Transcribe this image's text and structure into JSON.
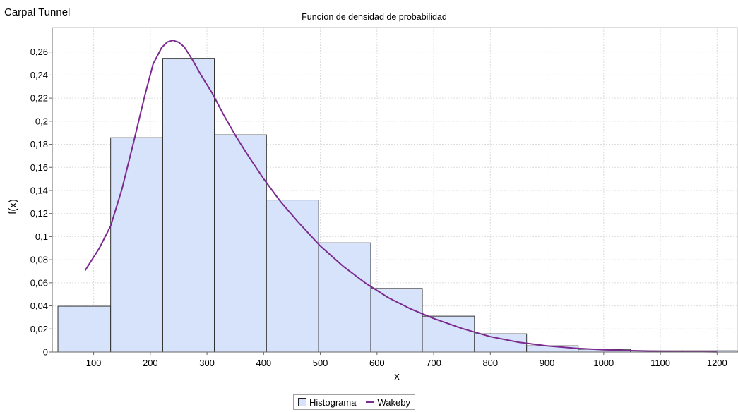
{
  "page_title": "Carpal Tunnel",
  "chart_data": {
    "type": "bar",
    "title": "Funcíon de densidad de probabilidad",
    "xlabel": "x",
    "ylabel": "f(x)",
    "xlim": [
      27,
      1237
    ],
    "ylim": [
      0,
      0.2812
    ],
    "grid": true,
    "legend_position": "bottom-center",
    "xticks": [
      100,
      200,
      300,
      400,
      500,
      600,
      700,
      800,
      900,
      1000,
      1100,
      1200
    ],
    "xtick_labels": [
      "100",
      "200",
      "300",
      "400",
      "500",
      "600",
      "700",
      "800",
      "900",
      "1000",
      "1100",
      "1200"
    ],
    "yticks": [
      0,
      0.02,
      0.04,
      0.06,
      0.08,
      0.1,
      0.12,
      0.14,
      0.16,
      0.18,
      0.2,
      0.22,
      0.24,
      0.26
    ],
    "ytick_labels": [
      "0",
      "0,02",
      "0,04",
      "0,06",
      "0,08",
      "0,1",
      "0,12",
      "0,14",
      "0,16",
      "0,18",
      "0,2",
      "0,22",
      "0,24",
      "0,26"
    ],
    "histogram": {
      "name": "Histograma",
      "color": "#d6e3fa",
      "edge_color": "#333333",
      "bins": [
        {
          "x0": 37,
          "x1": 130,
          "y": 0.0397
        },
        {
          "x0": 130,
          "x1": 222,
          "y": 0.1857
        },
        {
          "x0": 222,
          "x1": 313,
          "y": 0.2545
        },
        {
          "x0": 313,
          "x1": 405,
          "y": 0.1882
        },
        {
          "x0": 405,
          "x1": 497,
          "y": 0.1317
        },
        {
          "x0": 497,
          "x1": 589,
          "y": 0.0946
        },
        {
          "x0": 589,
          "x1": 680,
          "y": 0.0551
        },
        {
          "x0": 680,
          "x1": 772,
          "y": 0.0311
        },
        {
          "x0": 772,
          "x1": 864,
          "y": 0.0158
        },
        {
          "x0": 864,
          "x1": 955,
          "y": 0.0054
        },
        {
          "x0": 955,
          "x1": 1047,
          "y": 0.0024
        },
        {
          "x0": 1047,
          "x1": 1139,
          "y": 0.0011
        },
        {
          "x0": 1139,
          "x1": 1237,
          "y": 0.0011
        }
      ]
    },
    "series": [
      {
        "name": "Wakeby",
        "type": "line",
        "color": "#7b2a8f",
        "x": [
          85,
          110,
          130,
          150,
          170,
          190,
          205,
          220,
          230,
          240,
          250,
          260,
          275,
          290,
          310,
          330,
          350,
          370,
          400,
          430,
          460,
          500,
          540,
          580,
          620,
          660,
          700,
          750,
          800,
          850,
          900,
          950,
          1000,
          1050,
          1100,
          1150,
          1200
        ],
        "y": [
          0.0706,
          0.09,
          0.1093,
          0.1412,
          0.1809,
          0.2216,
          0.2496,
          0.2638,
          0.2686,
          0.2701,
          0.2684,
          0.2643,
          0.2527,
          0.2395,
          0.2237,
          0.2049,
          0.1878,
          0.1721,
          0.1501,
          0.1302,
          0.1131,
          0.0918,
          0.0744,
          0.0596,
          0.0471,
          0.0372,
          0.0291,
          0.0204,
          0.0133,
          0.0085,
          0.0053,
          0.0033,
          0.002,
          0.0012,
          0.0007,
          0.0004,
          0.0002
        ]
      }
    ]
  }
}
